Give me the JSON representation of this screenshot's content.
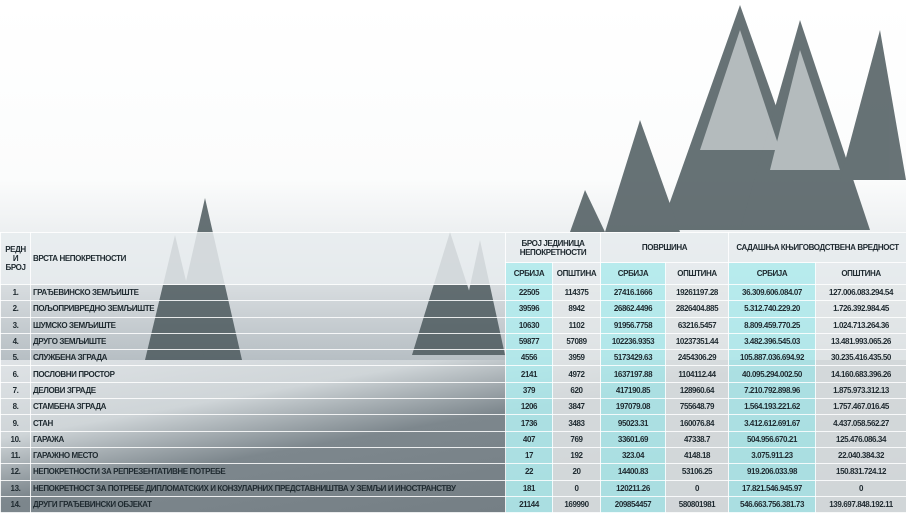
{
  "headers": {
    "rank": "РЕДНИ БРОЈ",
    "type": "ВРСТА НЕПОКРЕТНОСТИ",
    "units": "БРОЈ ЈЕДИНИЦА НЕПОКРЕТНОСТИ",
    "area": "ПОВРШИНА",
    "value": "САДАШЊА КЊИГОВОДСТВЕНА ВРЕДНОСТ",
    "serbia": "СРБИЈА",
    "municipality": "ОПШТИНА"
  },
  "colors": {
    "serbia_column": "#b2ecee",
    "text": "#1f2a30"
  },
  "rows": [
    {
      "rank": "1.",
      "type": "ГРАЂЕВИНСКО ЗЕМЉИШТЕ",
      "units_serbia": "22505",
      "units_mun": "114375",
      "area_serbia": "27416.1666",
      "area_mun": "19261197.28",
      "value_serbia": "36.309.606.084.07",
      "value_mun": "127.006.083.294.54"
    },
    {
      "rank": "2.",
      "type": "ПОЉОПРИВРЕДНО ЗЕМЉИШТЕ",
      "units_serbia": "39596",
      "units_mun": "8942",
      "area_serbia": "26862.4496",
      "area_mun": "2826404.885",
      "value_serbia": "5.312.740.229.20",
      "value_mun": "1.726.392.984.45"
    },
    {
      "rank": "3.",
      "type": "ШУМСКО ЗЕМЉИШТЕ",
      "units_serbia": "10630",
      "units_mun": "1102",
      "area_serbia": "91956.7758",
      "area_mun": "63216.5457",
      "value_serbia": "8.809.459.770.25",
      "value_mun": "1.024.713.264.36"
    },
    {
      "rank": "4.",
      "type": "ДРУГО ЗЕМЉИШТЕ",
      "units_serbia": "59877",
      "units_mun": "57089",
      "area_serbia": "102236.9353",
      "area_mun": "10237351.44",
      "value_serbia": "3.482.396.545.03",
      "value_mun": "13.481.993.065.26"
    },
    {
      "rank": "5.",
      "type": "СЛУЖБЕНА ЗГРАДА",
      "units_serbia": "4556",
      "units_mun": "3959",
      "area_serbia": "5173429.63",
      "area_mun": "2454306.29",
      "value_serbia": "105.887.036.694.92",
      "value_mun": "30.235.416.435.50"
    },
    {
      "rank": "6.",
      "type": "ПОСЛОВНИ ПРОСТОР",
      "units_serbia": "2141",
      "units_mun": "4972",
      "area_serbia": "1637197.88",
      "area_mun": "1104112.44",
      "value_serbia": "40.095.294.002.50",
      "value_mun": "14.160.683.396.26"
    },
    {
      "rank": "7.",
      "type": "ДЕЛОВИ ЗГРАДЕ",
      "units_serbia": "379",
      "units_mun": "620",
      "area_serbia": "417190.85",
      "area_mun": "128960.64",
      "value_serbia": "7.210.792.898.96",
      "value_mun": "1.875.973.312.13"
    },
    {
      "rank": "8.",
      "type": "СТАМБЕНА ЗГРАДА",
      "units_serbia": "1206",
      "units_mun": "3847",
      "area_serbia": "197079.08",
      "area_mun": "755648.79",
      "value_serbia": "1.564.193.221.62",
      "value_mun": "1.757.467.016.45"
    },
    {
      "rank": "9.",
      "type": "СТАН",
      "units_serbia": "1736",
      "units_mun": "3483",
      "area_serbia": "95023.31",
      "area_mun": "160076.84",
      "value_serbia": "3.412.612.691.67",
      "value_mun": "4.437.058.562.27"
    },
    {
      "rank": "10.",
      "type": "ГАРАЖА",
      "units_serbia": "407",
      "units_mun": "769",
      "area_serbia": "33601.69",
      "area_mun": "47338.7",
      "value_serbia": "504.956.670.21",
      "value_mun": "125.476.086.34"
    },
    {
      "rank": "11.",
      "type": "ГАРАЖНО МЕСТО",
      "units_serbia": "17",
      "units_mun": "192",
      "area_serbia": "323.04",
      "area_mun": "4148.18",
      "value_serbia": "3.075.911.23",
      "value_mun": "22.040.384.32"
    },
    {
      "rank": "12.",
      "type": "НЕПОКРЕТНОСТИ ЗА РЕПРЕЗЕНТАТИВНЕ ПОТРЕБЕ",
      "units_serbia": "22",
      "units_mun": "20",
      "area_serbia": "14400.83",
      "area_mun": "53106.25",
      "value_serbia": "919.206.033.98",
      "value_mun": "150.831.724.12"
    },
    {
      "rank": "13.",
      "type": "НЕПОКРЕТНОСТ ЗА ПОТРЕБЕ ДИПЛОМАТСКИХ И КОНЗУЛАРНИХ ПРЕДСТАВНИШТВА У ЗЕМЉИ И ИНОСТРАНСТВУ",
      "units_serbia": "181",
      "units_mun": "0",
      "area_serbia": "120211.26",
      "area_mun": "0",
      "value_serbia": "17.821.546.945.97",
      "value_mun": "0"
    },
    {
      "rank": "14.",
      "type": "ДРУГИ ГРАЂЕВИНСКИ ОБЈЕКАТ",
      "units_serbia": "21144",
      "units_mun": "169990",
      "area_serbia": "209854457",
      "area_mun": "580801981",
      "value_serbia": "546.663.756.381.73",
      "value_mun": "139.697.848.192.11"
    }
  ]
}
